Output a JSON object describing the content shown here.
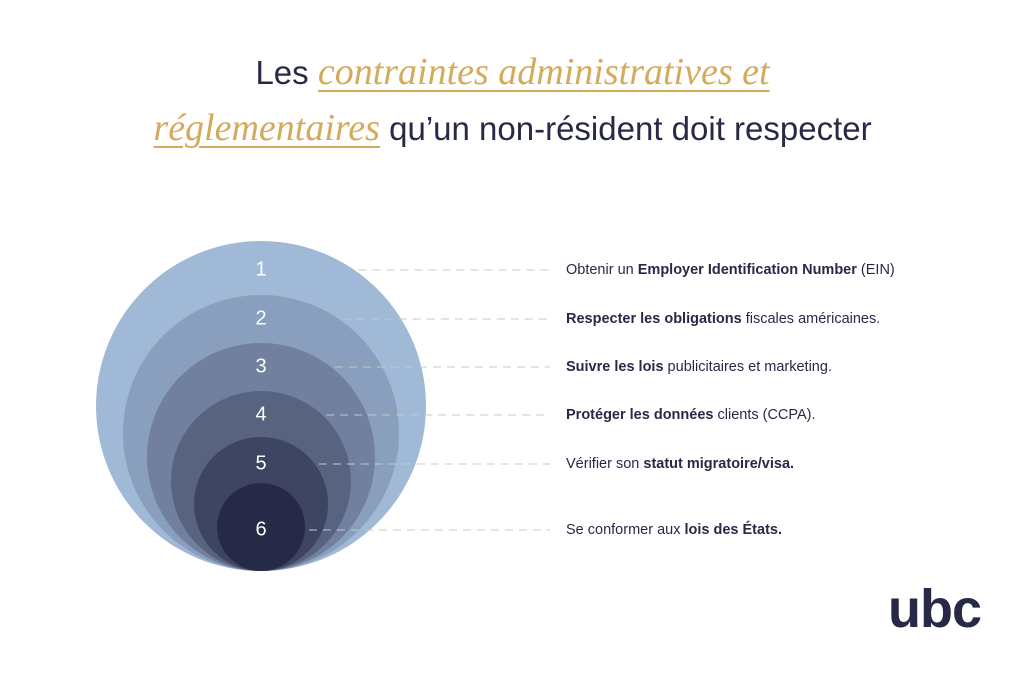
{
  "header": {
    "title_start": "Les",
    "title_highlight": [
      "contraintes administratives et",
      "réglementaires"
    ],
    "title_end": "qu’un non-résident doit respecter"
  },
  "items": [
    {
      "number": "1",
      "parts": [
        {
          "text": "Obtenir un ",
          "bold": false
        },
        {
          "text": "Employer Identification Number",
          "bold": true
        },
        {
          "text": " (EIN)",
          "bold": false
        }
      ]
    },
    {
      "number": "2",
      "parts": [
        {
          "text": "Respecter les obligations",
          "bold": true
        },
        {
          "text": " fiscales américaines.",
          "bold": false
        }
      ]
    },
    {
      "number": "3",
      "parts": [
        {
          "text": "Suivre les lois",
          "bold": true
        },
        {
          "text": " publicitaires et marketing.",
          "bold": false
        }
      ]
    },
    {
      "number": "4",
      "parts": [
        {
          "text": "Protéger les données",
          "bold": true
        },
        {
          "text": " clients (CCPA).",
          "bold": false
        }
      ]
    },
    {
      "number": "5",
      "parts": [
        {
          "text": "Vérifier son ",
          "bold": false
        },
        {
          "text": "statut migratoire/visa.",
          "bold": true
        }
      ]
    },
    {
      "number": "6",
      "parts": [
        {
          "text": "Se conformer aux ",
          "bold": false
        },
        {
          "text": "lois des États.",
          "bold": true
        }
      ]
    }
  ],
  "logo": "ubc"
}
